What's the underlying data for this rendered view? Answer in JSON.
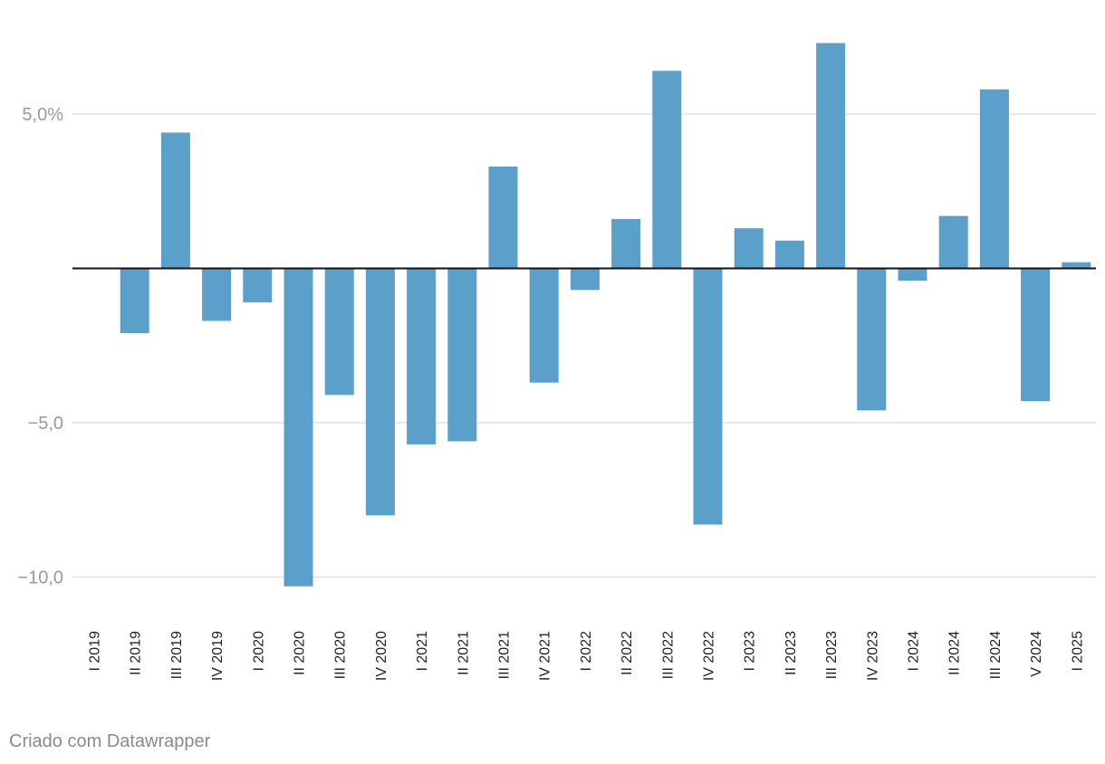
{
  "chart_data": {
    "type": "bar",
    "categories": [
      "I 2019",
      "II 2019",
      "III 2019",
      "IV 2019",
      "I 2020",
      "II 2020",
      "III 2020",
      "IV 2020",
      "I 2021",
      "II 2021",
      "III 2021",
      "IV 2021",
      "I 2022",
      "II 2022",
      "III 2022",
      "IV 2022",
      "I 2023",
      "II 2023",
      "III 2023",
      "IV 2023",
      "I 2024",
      "II 2024",
      "III 2024",
      "V 2024",
      "I 2025"
    ],
    "values": [
      0.0,
      -2.1,
      4.4,
      -1.7,
      -1.1,
      -10.3,
      -4.1,
      -8.0,
      -5.7,
      -5.6,
      3.3,
      -3.7,
      -0.7,
      1.6,
      6.4,
      -8.3,
      1.3,
      0.9,
      7.3,
      -4.6,
      -0.4,
      1.7,
      5.8,
      -4.3,
      0.2
    ],
    "ylim": [
      -10.9,
      7.8
    ],
    "yticks": [
      5,
      -5,
      -10
    ],
    "ytick_labels": [
      "5,0%",
      "−5,0",
      "−10,0"
    ],
    "bar_color": "#5b9fcb",
    "grid_color": "#e2e2e2",
    "zero_line_color": "#111111",
    "title": "",
    "xlabel": "",
    "ylabel": ""
  },
  "footer": {
    "credit": "Criado com Datawrapper"
  }
}
